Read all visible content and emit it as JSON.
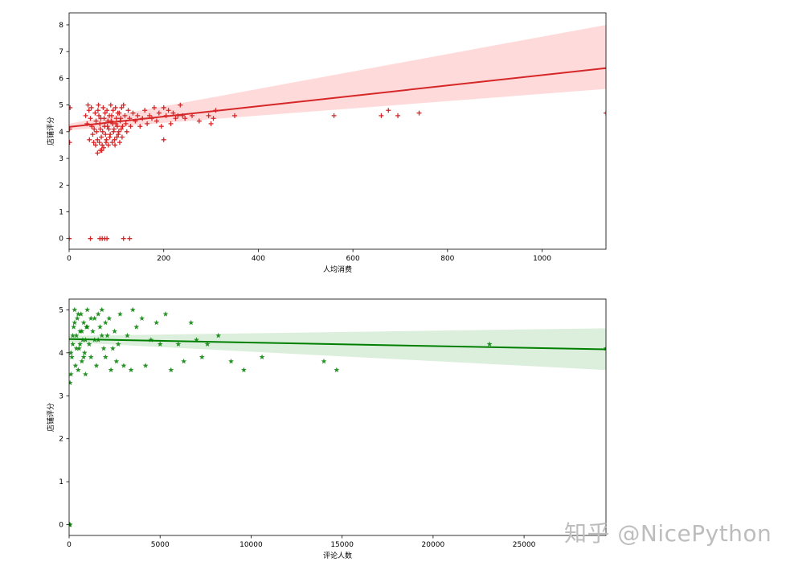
{
  "watermark": "知乎 @NicePython",
  "chart_data": [
    {
      "type": "scatter",
      "title": "",
      "xlabel": "人均消费",
      "ylabel": "店铺评分",
      "xlim": [
        0,
        1135
      ],
      "ylim": [
        -0.4,
        8.45
      ],
      "xticks": [
        0,
        200,
        400,
        600,
        800,
        1000
      ],
      "yticks": [
        0,
        1,
        2,
        3,
        4,
        5,
        6,
        7,
        8
      ],
      "grid": false,
      "marker": "+",
      "color": "#d62728",
      "regression": {
        "x": [
          0,
          1135
        ],
        "y": [
          4.18,
          6.38
        ],
        "ci_upper_end": 8.0,
        "ci_lower_end": 5.6,
        "ci_color": "#ffd6d6"
      },
      "points": [
        [
          1,
          4.1
        ],
        [
          1,
          3.6
        ],
        [
          2,
          4.9
        ],
        [
          0,
          0
        ],
        [
          45,
          0
        ],
        [
          65,
          0
        ],
        [
          70,
          0
        ],
        [
          75,
          0
        ],
        [
          80,
          0
        ],
        [
          115,
          0
        ],
        [
          128,
          0
        ],
        [
          40,
          5.0
        ],
        [
          42,
          4.8
        ],
        [
          45,
          4.5
        ],
        [
          48,
          4.2
        ],
        [
          50,
          3.9
        ],
        [
          52,
          3.6
        ],
        [
          55,
          4.7
        ],
        [
          57,
          4.4
        ],
        [
          58,
          4.0
        ],
        [
          60,
          3.7
        ],
        [
          62,
          5.0
        ],
        [
          63,
          4.6
        ],
        [
          65,
          4.3
        ],
        [
          66,
          4.1
        ],
        [
          68,
          3.8
        ],
        [
          70,
          3.5
        ],
        [
          72,
          4.9
        ],
        [
          74,
          4.5
        ],
        [
          75,
          4.2
        ],
        [
          77,
          3.9
        ],
        [
          78,
          3.6
        ],
        [
          80,
          4.8
        ],
        [
          82,
          4.4
        ],
        [
          84,
          4.1
        ],
        [
          86,
          3.8
        ],
        [
          88,
          5.0
        ],
        [
          90,
          4.6
        ],
        [
          92,
          4.3
        ],
        [
          94,
          4.0
        ],
        [
          96,
          3.7
        ],
        [
          98,
          4.9
        ],
        [
          100,
          4.5
        ],
        [
          102,
          4.2
        ],
        [
          104,
          3.9
        ],
        [
          106,
          4.7
        ],
        [
          108,
          4.4
        ],
        [
          110,
          4.1
        ],
        [
          112,
          3.8
        ],
        [
          115,
          5.0
        ],
        [
          118,
          4.6
        ],
        [
          120,
          4.3
        ],
        [
          122,
          4.0
        ],
        [
          125,
          4.8
        ],
        [
          128,
          4.5
        ],
        [
          130,
          4.2
        ],
        [
          35,
          4.6
        ],
        [
          38,
          4.3
        ],
        [
          43,
          3.7
        ],
        [
          47,
          4.9
        ],
        [
          53,
          4.1
        ],
        [
          56,
          3.5
        ],
        [
          61,
          4.8
        ],
        [
          64,
          3.6
        ],
        [
          67,
          4.5
        ],
        [
          69,
          3.3
        ],
        [
          71,
          4.0
        ],
        [
          73,
          3.4
        ],
        [
          76,
          4.7
        ],
        [
          79,
          3.7
        ],
        [
          81,
          4.2
        ],
        [
          83,
          3.5
        ],
        [
          85,
          4.6
        ],
        [
          87,
          3.9
        ],
        [
          89,
          4.4
        ],
        [
          91,
          3.6
        ],
        [
          93,
          4.8
        ],
        [
          95,
          4.1
        ],
        [
          97,
          3.5
        ],
        [
          99,
          4.3
        ],
        [
          101,
          3.8
        ],
        [
          103,
          4.7
        ],
        [
          105,
          4.0
        ],
        [
          107,
          3.6
        ],
        [
          109,
          4.5
        ],
        [
          111,
          4.9
        ],
        [
          113,
          4.2
        ],
        [
          60,
          3.2
        ],
        [
          66,
          3.3
        ],
        [
          135,
          4.7
        ],
        [
          140,
          4.4
        ],
        [
          145,
          4.6
        ],
        [
          150,
          4.2
        ],
        [
          155,
          4.5
        ],
        [
          160,
          4.8
        ],
        [
          165,
          4.3
        ],
        [
          170,
          4.6
        ],
        [
          175,
          4.5
        ],
        [
          180,
          4.9
        ],
        [
          185,
          4.4
        ],
        [
          190,
          4.7
        ],
        [
          195,
          4.2
        ],
        [
          200,
          4.9
        ],
        [
          205,
          4.6
        ],
        [
          210,
          4.8
        ],
        [
          215,
          4.3
        ],
        [
          220,
          4.7
        ],
        [
          225,
          4.5
        ],
        [
          230,
          4.6
        ],
        [
          235,
          5.0
        ],
        [
          240,
          4.6
        ],
        [
          245,
          4.5
        ],
        [
          200,
          3.7
        ],
        [
          260,
          4.6
        ],
        [
          275,
          4.4
        ],
        [
          295,
          4.6
        ],
        [
          300,
          4.3
        ],
        [
          305,
          4.5
        ],
        [
          310,
          4.8
        ],
        [
          350,
          4.6
        ],
        [
          560,
          4.6
        ],
        [
          660,
          4.6
        ],
        [
          675,
          4.8
        ],
        [
          695,
          4.6
        ],
        [
          740,
          4.7
        ],
        [
          1135,
          4.7
        ]
      ]
    },
    {
      "type": "scatter",
      "title": "",
      "xlabel": "评论人数",
      "ylabel": "店铺评分",
      "xlim": [
        0,
        29500
      ],
      "ylim": [
        -0.25,
        5.25
      ],
      "xticks": [
        0,
        5000,
        10000,
        15000,
        20000,
        25000
      ],
      "yticks": [
        0,
        1,
        2,
        3,
        4,
        5
      ],
      "grid": false,
      "marker": "*",
      "color": "#008000",
      "regression": {
        "x": [
          0,
          29500
        ],
        "y": [
          4.32,
          4.08
        ],
        "ci_upper_end": 4.57,
        "ci_lower_end": 3.6,
        "ci_color": "#d8ecd8"
      },
      "points": [
        [
          0,
          0
        ],
        [
          10,
          0
        ],
        [
          30,
          0
        ],
        [
          50,
          0
        ],
        [
          50,
          3.3
        ],
        [
          100,
          3.5
        ],
        [
          150,
          3.9
        ],
        [
          200,
          4.2
        ],
        [
          250,
          4.6
        ],
        [
          300,
          5.0
        ],
        [
          350,
          3.7
        ],
        [
          400,
          4.4
        ],
        [
          450,
          4.8
        ],
        [
          500,
          3.6
        ],
        [
          550,
          4.1
        ],
        [
          600,
          4.5
        ],
        [
          650,
          4.9
        ],
        [
          700,
          3.8
        ],
        [
          750,
          4.3
        ],
        [
          800,
          4.7
        ],
        [
          850,
          4.0
        ],
        [
          900,
          3.5
        ],
        [
          950,
          4.6
        ],
        [
          1000,
          5.0
        ],
        [
          1100,
          4.2
        ],
        [
          1200,
          3.9
        ],
        [
          1300,
          4.5
        ],
        [
          1400,
          4.8
        ],
        [
          1500,
          3.7
        ],
        [
          1600,
          4.3
        ],
        [
          1700,
          4.6
        ],
        [
          1800,
          5.0
        ],
        [
          1900,
          4.1
        ],
        [
          2000,
          3.9
        ],
        [
          2100,
          4.4
        ],
        [
          2200,
          4.8
        ],
        [
          2300,
          3.6
        ],
        [
          2500,
          4.5
        ],
        [
          2700,
          4.2
        ],
        [
          2800,
          4.9
        ],
        [
          3000,
          3.7
        ],
        [
          3200,
          4.4
        ],
        [
          3400,
          3.6
        ],
        [
          3500,
          5.0
        ],
        [
          3700,
          4.6
        ],
        [
          4000,
          4.8
        ],
        [
          4200,
          3.7
        ],
        [
          4500,
          4.3
        ],
        [
          4800,
          4.7
        ],
        [
          5000,
          4.2
        ],
        [
          5300,
          4.9
        ],
        [
          5600,
          3.6
        ],
        [
          6000,
          4.2
        ],
        [
          6300,
          3.8
        ],
        [
          6700,
          4.7
        ],
        [
          7000,
          4.3
        ],
        [
          7300,
          3.9
        ],
        [
          7600,
          4.2
        ],
        [
          8200,
          4.4
        ],
        [
          8900,
          3.8
        ],
        [
          9600,
          3.6
        ],
        [
          10600,
          3.9
        ],
        [
          14000,
          3.8
        ],
        [
          14700,
          3.6
        ],
        [
          23100,
          4.2
        ],
        [
          29500,
          4.1
        ],
        [
          100,
          4.0
        ],
        [
          200,
          4.4
        ],
        [
          300,
          4.7
        ],
        [
          400,
          4.1
        ],
        [
          500,
          4.9
        ],
        [
          600,
          4.2
        ],
        [
          700,
          4.5
        ],
        [
          800,
          3.9
        ],
        [
          900,
          4.3
        ],
        [
          1000,
          4.6
        ],
        [
          1200,
          4.8
        ],
        [
          1400,
          4.3
        ],
        [
          1600,
          4.9
        ],
        [
          1800,
          4.4
        ],
        [
          2000,
          4.7
        ],
        [
          2400,
          4.1
        ],
        [
          2600,
          3.8
        ]
      ]
    }
  ]
}
